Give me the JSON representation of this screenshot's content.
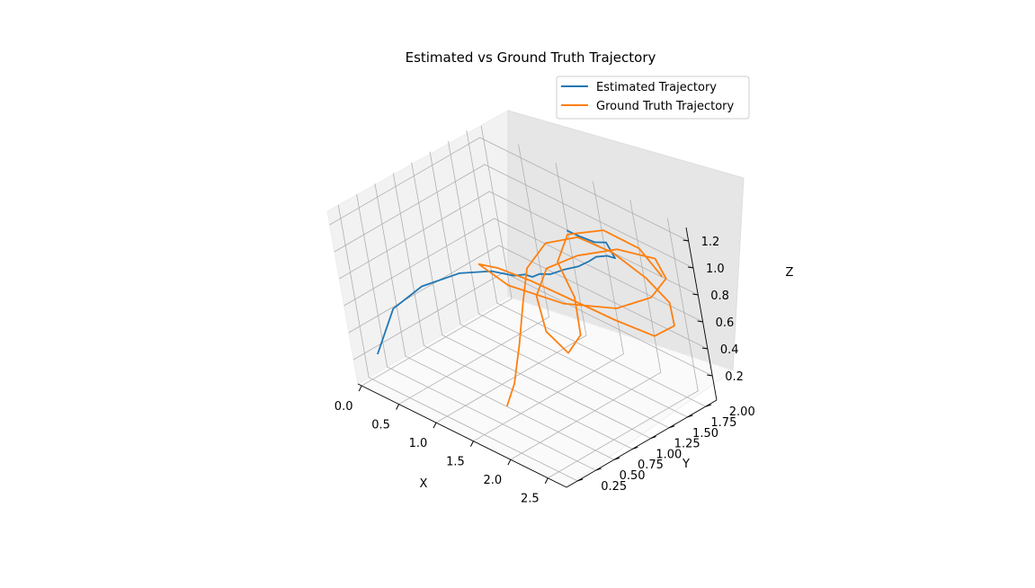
{
  "chart_data": {
    "type": "line",
    "projection": "3d",
    "title": "Estimated vs Ground Truth Trajectory",
    "xlabel": "X",
    "ylabel": "Y",
    "zlabel": "Z",
    "x_ticks": [
      "0.0",
      "0.5",
      "1.0",
      "1.5",
      "2.0",
      "2.5"
    ],
    "y_ticks": [
      "0.25",
      "0.50",
      "0.75",
      "1.00",
      "1.25",
      "1.50",
      "1.75",
      "2.00"
    ],
    "z_ticks": [
      "0.2",
      "0.4",
      "0.6",
      "0.8",
      "1.0",
      "1.2"
    ],
    "grid": true,
    "legend_position": "top-right",
    "series": [
      {
        "name": "Estimated Trajectory",
        "color": "#1f77b4",
        "points": [
          [
            0.02,
            0.35,
            0.18
          ],
          [
            0.25,
            0.45,
            0.55
          ],
          [
            0.55,
            0.6,
            0.75
          ],
          [
            0.9,
            0.8,
            0.88
          ],
          [
            1.2,
            0.95,
            0.93
          ],
          [
            1.4,
            1.05,
            0.92
          ],
          [
            1.5,
            1.1,
            0.94
          ],
          [
            1.55,
            1.15,
            0.92
          ],
          [
            1.6,
            1.2,
            0.94
          ],
          [
            1.7,
            1.25,
            0.95
          ],
          [
            1.8,
            1.35,
            0.98
          ],
          [
            1.9,
            1.45,
            1.0
          ],
          [
            1.95,
            1.55,
            1.02
          ],
          [
            2.0,
            1.6,
            1.05
          ],
          [
            2.05,
            1.7,
            1.04
          ],
          [
            2.1,
            1.75,
            1.02
          ],
          [
            1.95,
            1.8,
            1.08
          ],
          [
            1.9,
            1.7,
            1.1
          ],
          [
            1.8,
            1.6,
            1.15
          ],
          [
            1.7,
            1.55,
            1.18
          ]
        ]
      },
      {
        "name": "Ground Truth Trajectory",
        "color": "#ff7f0e",
        "points": [
          [
            1.55,
            0.55,
            0.15
          ],
          [
            1.6,
            0.65,
            0.3
          ],
          [
            1.6,
            0.8,
            0.55
          ],
          [
            1.58,
            0.95,
            0.8
          ],
          [
            1.55,
            1.1,
            1.0
          ],
          [
            1.65,
            1.3,
            1.15
          ],
          [
            1.9,
            1.5,
            1.2
          ],
          [
            2.2,
            1.65,
            1.12
          ],
          [
            2.45,
            1.8,
            0.95
          ],
          [
            2.55,
            1.95,
            0.75
          ],
          [
            2.5,
            2.0,
            0.55
          ],
          [
            2.3,
            1.9,
            0.45
          ],
          [
            2.0,
            1.7,
            0.55
          ],
          [
            1.7,
            1.45,
            0.7
          ],
          [
            1.45,
            1.2,
            0.85
          ],
          [
            1.25,
            1.0,
            0.95
          ],
          [
            1.15,
            0.85,
            1.0
          ],
          [
            1.35,
            1.0,
            0.85
          ],
          [
            1.7,
            1.35,
            0.7
          ],
          [
            2.05,
            1.7,
            0.65
          ],
          [
            2.35,
            1.9,
            0.75
          ],
          [
            2.5,
            2.0,
            0.9
          ],
          [
            2.45,
            1.95,
            1.05
          ],
          [
            2.15,
            1.75,
            1.1
          ],
          [
            1.85,
            1.5,
            1.05
          ],
          [
            1.6,
            1.3,
            0.95
          ],
          [
            1.5,
            1.2,
            0.75
          ],
          [
            1.55,
            1.2,
            0.5
          ],
          [
            1.7,
            1.3,
            0.35
          ],
          [
            1.75,
            1.45,
            0.45
          ],
          [
            1.7,
            1.5,
            0.7
          ],
          [
            1.6,
            1.45,
            0.95
          ],
          [
            1.7,
            1.55,
            1.15
          ],
          [
            2.0,
            1.75,
            1.2
          ],
          [
            2.3,
            1.9,
            1.1
          ],
          [
            2.45,
            2.0,
            0.9
          ]
        ]
      }
    ]
  }
}
